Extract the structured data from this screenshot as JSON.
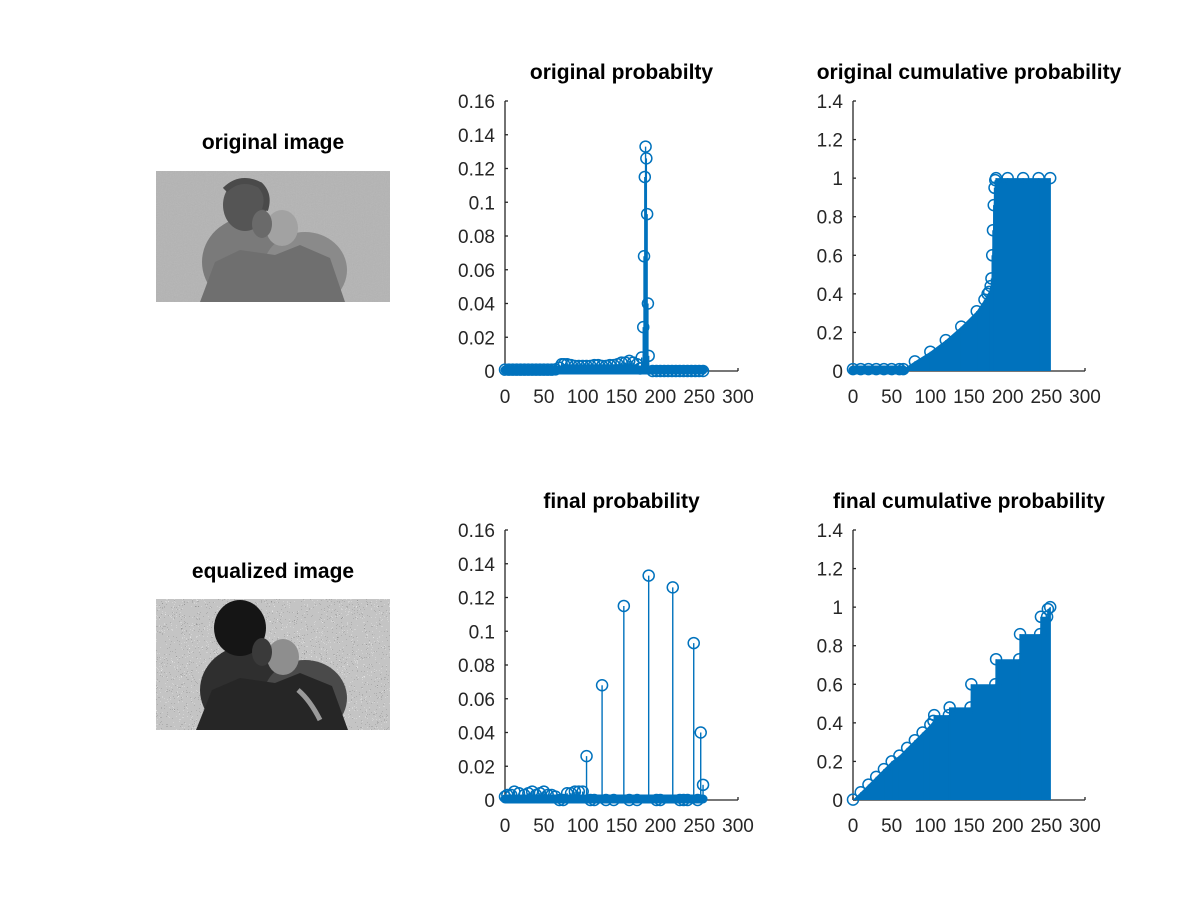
{
  "figure": {
    "panels": [
      {
        "id": "original-image",
        "title": "original image",
        "kind": "image",
        "tone": "low-contrast grayscale"
      },
      {
        "id": "equalized-image",
        "title": "equalized image",
        "kind": "image",
        "tone": "high-contrast grayscale, noisy"
      }
    ]
  },
  "colors": {
    "series": "#0072bd",
    "axis": "#262626",
    "text": "#000000",
    "background": "#ffffff"
  },
  "chart_data": [
    {
      "type": "stem",
      "title": "original probabilty",
      "xlim": [
        0,
        300
      ],
      "ylim": [
        0,
        0.16
      ],
      "xticks": [
        0,
        50,
        100,
        150,
        200,
        250,
        300
      ],
      "yticks": [
        0,
        0.02,
        0.04,
        0.06,
        0.08,
        0.1,
        0.12,
        0.14,
        0.16
      ],
      "notes": "near-zero 0-70; ~0.003 from 70-170; spike 175-185; zero after",
      "points": [
        [
          0,
          0.0008
        ],
        [
          5,
          0.0008
        ],
        [
          10,
          0.0008
        ],
        [
          15,
          0.0008
        ],
        [
          20,
          0.0008
        ],
        [
          25,
          0.0008
        ],
        [
          30,
          0.0008
        ],
        [
          35,
          0.0008
        ],
        [
          40,
          0.0008
        ],
        [
          45,
          0.0008
        ],
        [
          50,
          0.0008
        ],
        [
          55,
          0.0008
        ],
        [
          60,
          0.0008
        ],
        [
          65,
          0.001
        ],
        [
          70,
          0.002
        ],
        [
          73,
          0.004
        ],
        [
          76,
          0.004
        ],
        [
          80,
          0.004
        ],
        [
          85,
          0.0035
        ],
        [
          90,
          0.003
        ],
        [
          95,
          0.003
        ],
        [
          100,
          0.003
        ],
        [
          105,
          0.003
        ],
        [
          110,
          0.003
        ],
        [
          115,
          0.0035
        ],
        [
          120,
          0.0035
        ],
        [
          125,
          0.003
        ],
        [
          130,
          0.003
        ],
        [
          135,
          0.0035
        ],
        [
          140,
          0.0035
        ],
        [
          145,
          0.004
        ],
        [
          150,
          0.005
        ],
        [
          155,
          0.005
        ],
        [
          160,
          0.006
        ],
        [
          165,
          0.005
        ],
        [
          170,
          0.004
        ],
        [
          174,
          0.0015
        ],
        [
          176,
          0.008
        ],
        [
          178,
          0.026
        ],
        [
          179,
          0.068
        ],
        [
          180,
          0.115
        ],
        [
          181,
          0.133
        ],
        [
          182,
          0.126
        ],
        [
          183,
          0.093
        ],
        [
          184,
          0.04
        ],
        [
          185,
          0.009
        ],
        [
          190,
          0
        ],
        [
          195,
          0
        ],
        [
          200,
          0
        ],
        [
          205,
          0
        ],
        [
          210,
          0
        ],
        [
          215,
          0
        ],
        [
          220,
          0
        ],
        [
          225,
          0
        ],
        [
          230,
          0
        ],
        [
          235,
          0
        ],
        [
          240,
          0
        ],
        [
          245,
          0
        ],
        [
          250,
          0
        ],
        [
          255,
          0
        ]
      ]
    },
    {
      "type": "stem",
      "title": "original cumulative probability",
      "xlim": [
        0,
        300
      ],
      "ylim": [
        0,
        1.4
      ],
      "xticks": [
        0,
        50,
        100,
        150,
        200,
        250,
        300
      ],
      "yticks": [
        0,
        0.2,
        0.4,
        0.6,
        0.8,
        1,
        1.2,
        1.4
      ],
      "notes": "0 until ~65, rises to ~0.4 at 174, jumps to 1 by 185, stays 1 to 255",
      "points": [
        [
          0,
          0.01
        ],
        [
          10,
          0.01
        ],
        [
          20,
          0.01
        ],
        [
          30,
          0.01
        ],
        [
          40,
          0.01
        ],
        [
          50,
          0.01
        ],
        [
          60,
          0.01
        ],
        [
          65,
          0.01
        ],
        [
          80,
          0.05
        ],
        [
          100,
          0.1
        ],
        [
          120,
          0.16
        ],
        [
          140,
          0.23
        ],
        [
          160,
          0.31
        ],
        [
          170,
          0.37
        ],
        [
          174,
          0.4
        ],
        [
          176,
          0.41
        ],
        [
          178,
          0.44
        ],
        [
          179,
          0.48
        ],
        [
          180,
          0.6
        ],
        [
          181,
          0.73
        ],
        [
          182,
          0.86
        ],
        [
          183,
          0.95
        ],
        [
          184,
          0.99
        ],
        [
          185,
          1
        ],
        [
          200,
          1
        ],
        [
          220,
          1
        ],
        [
          240,
          1
        ],
        [
          255,
          1
        ]
      ]
    },
    {
      "type": "stem",
      "title": "final probability",
      "xlim": [
        0,
        300
      ],
      "ylim": [
        0,
        0.16
      ],
      "xticks": [
        0,
        50,
        100,
        150,
        200,
        250,
        300
      ],
      "yticks": [
        0,
        0.02,
        0.04,
        0.06,
        0.08,
        0.1,
        0.12,
        0.14,
        0.16
      ],
      "notes": "small values spread, discrete spikes after equalization",
      "points": [
        [
          0,
          0.002
        ],
        [
          3,
          0.003
        ],
        [
          8,
          0.003
        ],
        [
          12,
          0.005
        ],
        [
          18,
          0.004
        ],
        [
          25,
          0.003
        ],
        [
          30,
          0.004
        ],
        [
          35,
          0.005
        ],
        [
          40,
          0.003
        ],
        [
          45,
          0.004
        ],
        [
          50,
          0.005
        ],
        [
          55,
          0.003
        ],
        [
          60,
          0.003
        ],
        [
          65,
          0.002
        ],
        [
          70,
          0
        ],
        [
          75,
          0
        ],
        [
          80,
          0.004
        ],
        [
          85,
          0.004
        ],
        [
          90,
          0.005
        ],
        [
          95,
          0.005
        ],
        [
          100,
          0.005
        ],
        [
          105,
          0.026
        ],
        [
          125,
          0.068
        ],
        [
          153,
          0.115
        ],
        [
          185,
          0.133
        ],
        [
          216,
          0.126
        ],
        [
          243,
          0.093
        ],
        [
          252,
          0.04
        ],
        [
          255,
          0.009
        ],
        [
          110,
          0
        ],
        [
          115,
          0
        ],
        [
          130,
          0
        ],
        [
          140,
          0
        ],
        [
          160,
          0
        ],
        [
          170,
          0
        ],
        [
          195,
          0
        ],
        [
          200,
          0
        ],
        [
          225,
          0
        ],
        [
          230,
          0
        ],
        [
          235,
          0
        ],
        [
          248,
          0
        ]
      ]
    },
    {
      "type": "stem",
      "title": "final cumulative probability",
      "xlim": [
        0,
        300
      ],
      "ylim": [
        0,
        1.4
      ],
      "xticks": [
        0,
        50,
        100,
        150,
        200,
        250,
        300
      ],
      "yticks": [
        0,
        0.2,
        0.4,
        0.6,
        0.8,
        1,
        1.2,
        1.4
      ],
      "notes": "linear ramp to ~0.4 at ~104, then steps at 0.48/0.6/0.73/0.86/0.95/1",
      "points": [
        [
          0,
          0.002
        ],
        [
          10,
          0.04
        ],
        [
          20,
          0.08
        ],
        [
          30,
          0.12
        ],
        [
          40,
          0.16
        ],
        [
          50,
          0.2
        ],
        [
          60,
          0.23
        ],
        [
          70,
          0.27
        ],
        [
          80,
          0.31
        ],
        [
          90,
          0.35
        ],
        [
          100,
          0.39
        ],
        [
          104,
          0.41
        ],
        [
          105,
          0.44
        ],
        [
          124,
          0.44
        ],
        [
          125,
          0.48
        ],
        [
          152,
          0.48
        ],
        [
          153,
          0.6
        ],
        [
          184,
          0.6
        ],
        [
          185,
          0.73
        ],
        [
          215,
          0.73
        ],
        [
          216,
          0.86
        ],
        [
          242,
          0.86
        ],
        [
          243,
          0.95
        ],
        [
          251,
          0.95
        ],
        [
          252,
          0.99
        ],
        [
          255,
          1
        ]
      ]
    }
  ]
}
